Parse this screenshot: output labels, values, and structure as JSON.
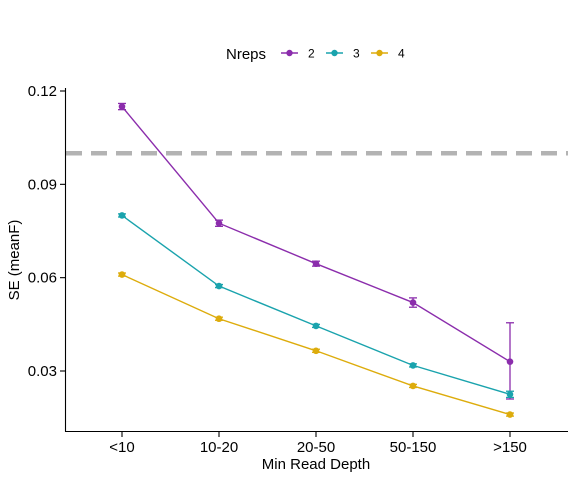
{
  "chart_data": {
    "type": "line",
    "xlabel": "Min Read Depth",
    "ylabel": "SE (meanF)",
    "categories": [
      "<10",
      "10-20",
      "20-50",
      "50-150",
      ">150"
    ],
    "ylim": [
      0.01,
      0.125
    ],
    "yticks": [
      0.03,
      0.06,
      0.09,
      0.12
    ],
    "ytick_labels": [
      "0.03",
      "0.06",
      "0.09",
      "0.12"
    ],
    "reference_line": {
      "y": 0.1,
      "style": "dashed",
      "color": "#b3b3b3"
    },
    "legend": {
      "title": "Nreps",
      "position": "top"
    },
    "series": [
      {
        "name": "2",
        "color": "#8b2dac",
        "values": [
          0.115,
          0.0775,
          0.0645,
          0.052,
          0.033
        ],
        "error_low": [
          0.114,
          0.0765,
          0.0637,
          0.0505,
          0.021
        ],
        "error_high": [
          0.116,
          0.0785,
          0.0653,
          0.0535,
          0.0455
        ]
      },
      {
        "name": "3",
        "color": "#1aa3ad",
        "values": [
          0.08,
          0.0573,
          0.0445,
          0.0318,
          0.0225
        ],
        "error_low": [
          0.0795,
          0.0568,
          0.044,
          0.0313,
          0.0215
        ],
        "error_high": [
          0.0805,
          0.0578,
          0.045,
          0.0323,
          0.0235
        ]
      },
      {
        "name": "4",
        "color": "#ddac0c",
        "values": [
          0.061,
          0.0468,
          0.0365,
          0.0252,
          0.016
        ],
        "error_low": [
          0.0605,
          0.0463,
          0.036,
          0.0247,
          0.0155
        ],
        "error_high": [
          0.0615,
          0.0473,
          0.037,
          0.0257,
          0.0165
        ]
      }
    ]
  }
}
